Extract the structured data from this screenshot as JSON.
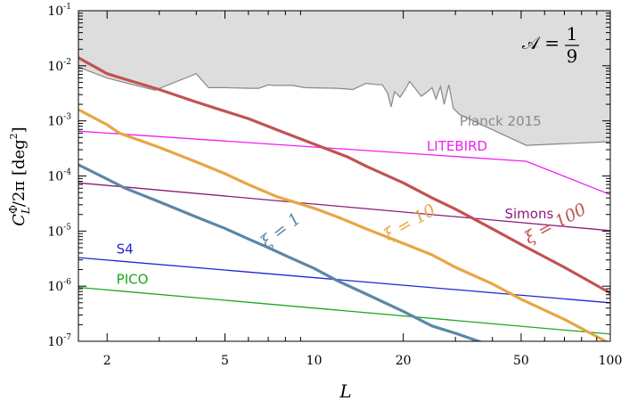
{
  "chart_data": {
    "type": "line",
    "xlabel": "L",
    "ylabel": {
      "main": "C",
      "sup": "Φ",
      "sub": "L",
      "rest": "/2π [deg",
      "unit_exp": "2",
      "close": "]"
    },
    "xscale": "log",
    "yscale": "log",
    "xlim": [
      1.6,
      100
    ],
    "ylim": [
      1e-07,
      0.1
    ],
    "x_ticks": [
      {
        "value": 2,
        "label": "2"
      },
      {
        "value": 5,
        "label": "5"
      },
      {
        "value": 10,
        "label": "10"
      },
      {
        "value": 20,
        "label": "20"
      },
      {
        "value": 50,
        "label": "50"
      },
      {
        "value": 100,
        "label": "100"
      }
    ],
    "y_ticks": [
      {
        "value": 1e-07,
        "base": "10",
        "exp": "-7"
      },
      {
        "value": 1e-06,
        "base": "10",
        "exp": "-6"
      },
      {
        "value": 1e-05,
        "base": "10",
        "exp": "-5"
      },
      {
        "value": 0.0001,
        "base": "10",
        "exp": "-4"
      },
      {
        "value": 0.001,
        "base": "10",
        "exp": "-3"
      },
      {
        "value": 0.01,
        "base": "10",
        "exp": "-2"
      },
      {
        "value": 0.1,
        "base": "10",
        "exp": "-1"
      }
    ],
    "annotation": {
      "lhs": "𝒜 =",
      "num": "1",
      "den": "9"
    },
    "excluded_region": {
      "name": "Planck 2015",
      "fill": "#dddddd",
      "stroke": "#888888",
      "label_color": "#8a8a8a",
      "points": [
        [
          1.6,
          0.0095
        ],
        [
          2,
          0.006
        ],
        [
          2.9,
          0.0036
        ],
        [
          4,
          0.0072
        ],
        [
          4.4,
          0.004
        ],
        [
          5,
          0.004
        ],
        [
          6.1,
          0.0039
        ],
        [
          6.5,
          0.0039
        ],
        [
          7,
          0.0045
        ],
        [
          7.4,
          0.0044
        ],
        [
          8.5,
          0.0044
        ],
        [
          9.3,
          0.004
        ],
        [
          12,
          0.0039
        ],
        [
          13.5,
          0.0037
        ],
        [
          15,
          0.0048
        ],
        [
          16,
          0.0046
        ],
        [
          17,
          0.0045
        ],
        [
          17.7,
          0.0032
        ],
        [
          18.2,
          0.0018
        ],
        [
          18.7,
          0.0034
        ],
        [
          19.5,
          0.0027
        ],
        [
          20.3,
          0.0037
        ],
        [
          21,
          0.0052
        ],
        [
          22,
          0.0038
        ],
        [
          23,
          0.0028
        ],
        [
          24,
          0.0033
        ],
        [
          25,
          0.004
        ],
        [
          25.8,
          0.0025
        ],
        [
          26.7,
          0.0042
        ],
        [
          27.5,
          0.002
        ],
        [
          28.5,
          0.0045
        ],
        [
          29.5,
          0.0017
        ],
        [
          31,
          0.0013
        ],
        [
          52,
          0.00036
        ],
        [
          100,
          0.00042
        ]
      ]
    },
    "series": [
      {
        "name": "LITEBIRD",
        "kind": "experiment",
        "color": "#f020f0",
        "points": [
          [
            1.6,
            0.00065
          ],
          [
            52,
            0.000185
          ],
          [
            100,
            4.6e-05
          ]
        ]
      },
      {
        "name": "Simons",
        "kind": "experiment",
        "color": "#8b1a7a",
        "points": [
          [
            1.6,
            7.5e-05
          ],
          [
            100,
            1.02e-05
          ]
        ]
      },
      {
        "name": "S4",
        "kind": "experiment",
        "color": "#1f25d6",
        "points": [
          [
            1.6,
            3.3e-06
          ],
          [
            100,
            5e-07
          ]
        ]
      },
      {
        "name": "PICO",
        "kind": "experiment",
        "color": "#20a520",
        "points": [
          [
            1.6,
            9.5e-07
          ],
          [
            100,
            1.35e-07
          ]
        ]
      },
      {
        "name": "ξ = 1",
        "kind": "theory",
        "color": "#5b87a8",
        "points": [
          [
            1.6,
            0.00016
          ],
          [
            2,
            8.8e-05
          ],
          [
            2.3,
            6e-05
          ],
          [
            3,
            3.4e-05
          ],
          [
            4,
            1.8e-05
          ],
          [
            5,
            1.12e-05
          ],
          [
            6,
            7.2e-06
          ],
          [
            7,
            5e-06
          ],
          [
            8,
            3.6e-06
          ],
          [
            10,
            2.1e-06
          ],
          [
            12,
            1.25e-06
          ],
          [
            15,
            7.2e-07
          ],
          [
            20,
            3.5e-07
          ],
          [
            25,
            1.9e-07
          ],
          [
            30,
            1.4e-07
          ],
          [
            38,
            9e-08
          ]
        ]
      },
      {
        "name": "ξ = 10",
        "kind": "theory",
        "color": "#e8a545",
        "points": [
          [
            1.6,
            0.0016
          ],
          [
            2,
            0.00085
          ],
          [
            2.2,
            0.0006
          ],
          [
            3,
            0.00033
          ],
          [
            4,
            0.00018
          ],
          [
            5,
            0.00011
          ],
          [
            6,
            7e-05
          ],
          [
            7.5,
            4.2e-05
          ],
          [
            10,
            2.6e-05
          ],
          [
            12,
            1.8e-05
          ],
          [
            15,
            1.1e-05
          ],
          [
            20,
            6e-06
          ],
          [
            25,
            3.7e-06
          ],
          [
            30,
            2.2e-06
          ],
          [
            40,
            1.1e-06
          ],
          [
            50,
            5.8e-07
          ],
          [
            70,
            2.5e-07
          ],
          [
            100,
            9e-08
          ]
        ]
      },
      {
        "name": "ξ = 100",
        "kind": "theory",
        "color": "#c25252",
        "points": [
          [
            1.6,
            0.014
          ],
          [
            2,
            0.0072
          ],
          [
            3,
            0.0037
          ],
          [
            4,
            0.0022
          ],
          [
            5,
            0.0015
          ],
          [
            6,
            0.0011
          ],
          [
            8,
            0.0006
          ],
          [
            10,
            0.00038
          ],
          [
            13,
            0.00022
          ],
          [
            15,
            0.00015
          ],
          [
            20,
            7.5e-05
          ],
          [
            25,
            4e-05
          ],
          [
            30,
            2.5e-05
          ],
          [
            40,
            1.1e-05
          ],
          [
            50,
            5.7e-06
          ],
          [
            70,
            2.2e-06
          ],
          [
            100,
            7.5e-07
          ]
        ]
      }
    ]
  }
}
